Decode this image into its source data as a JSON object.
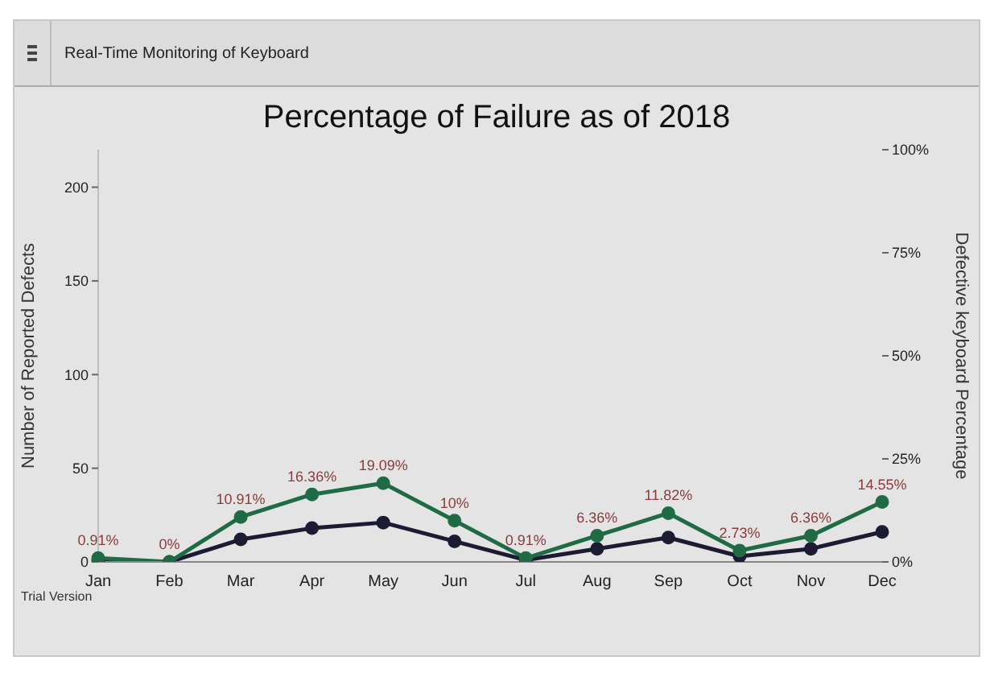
{
  "chart_data": {
    "type": "line",
    "title": "Percentage of Failure as of 2018",
    "subtitle": "Real-Time Monitoring of Keyboard",
    "ylabel": "Number of Reported Defects",
    "y2label": "Defective keyboard Percentage",
    "categories": [
      "Jan",
      "Feb",
      "Mar",
      "Apr",
      "May",
      "Jun",
      "Jul",
      "Aug",
      "Sep",
      "Oct",
      "Nov",
      "Dec"
    ],
    "series": [
      {
        "color": "#1b1b33",
        "values": [
          1,
          0,
          12,
          18,
          21,
          11,
          1,
          7,
          13,
          3,
          7,
          16
        ]
      },
      {
        "color": "#1e6b45",
        "axis": "y2",
        "values": [
          0.91,
          0,
          10.91,
          16.36,
          19.09,
          10,
          0.91,
          6.36,
          11.82,
          2.73,
          6.36,
          14.55
        ],
        "value_labels": [
          "0.91%",
          "0%",
          "10.91%",
          "16.36%",
          "19.09%",
          "10%",
          "0.91%",
          "6.36%",
          "11.82%",
          "2.73%",
          "6.36%",
          "14.55%"
        ]
      }
    ],
    "ylim": [
      0,
      220
    ],
    "yticks": [
      0,
      50,
      100,
      150,
      200
    ],
    "y2lim": [
      0,
      100
    ],
    "y2ticks": [
      {
        "value": 0,
        "label": "0%"
      },
      {
        "value": 25,
        "label": "25%"
      },
      {
        "value": 50,
        "label": "50%"
      },
      {
        "value": 75,
        "label": "75%"
      },
      {
        "value": 100,
        "label": "100%"
      }
    ],
    "marker": "circle",
    "line_style": "solid",
    "annotations": [
      "Trial Version"
    ]
  }
}
